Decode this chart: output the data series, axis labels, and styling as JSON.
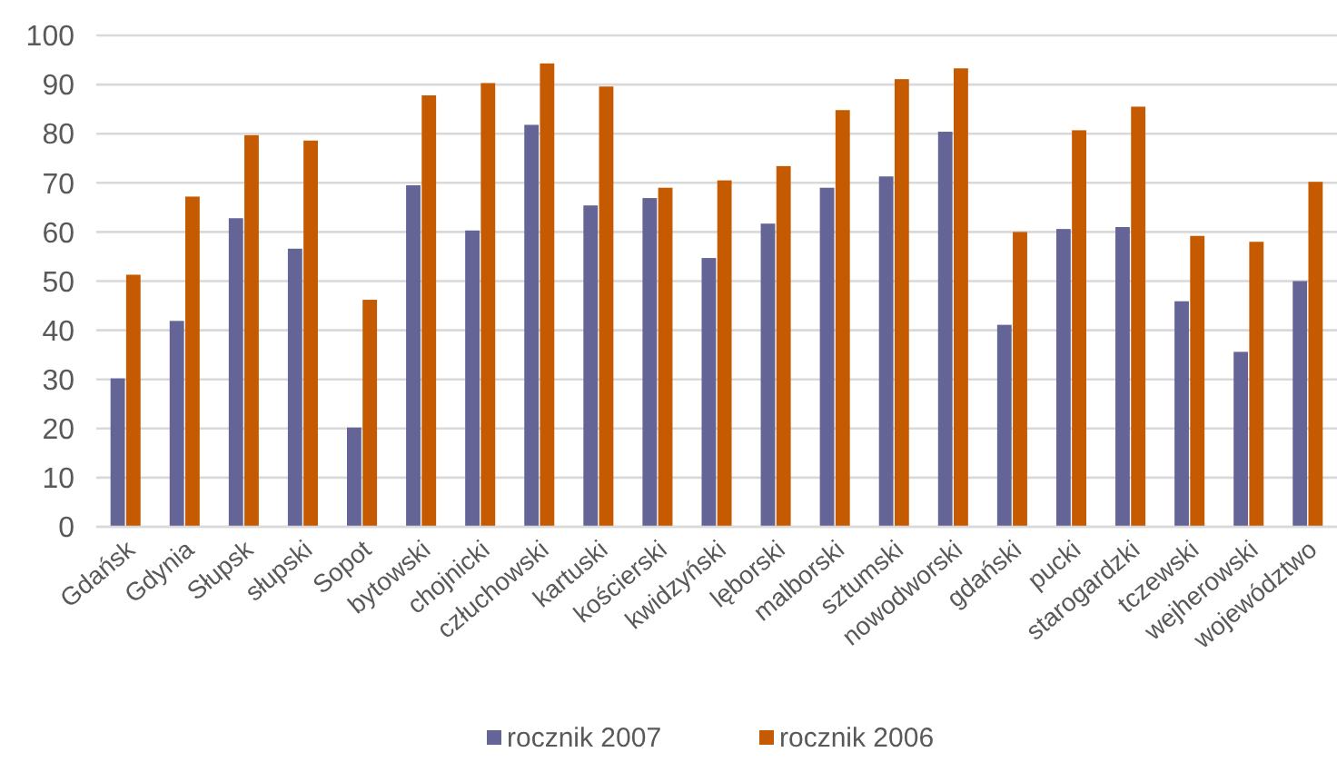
{
  "chart_data": {
    "type": "bar",
    "categories": [
      "Gdańsk",
      "Gdynia",
      "Słupsk",
      "słupski",
      "Sopot",
      "bytowski",
      "chojnicki",
      "człuchowski",
      "kartuski",
      "kościerski",
      "kwidzyński",
      "lęborski",
      "malborski",
      "sztumski",
      "nowodworski",
      "gdański",
      "pucki",
      "starogardzki",
      "tczewski",
      "wejherowski",
      "województwo"
    ],
    "series": [
      {
        "name": "rocznik 2007",
        "color": "#646496",
        "values": [
          30.2,
          41.9,
          62.8,
          56.6,
          20.2,
          69.5,
          60.3,
          81.8,
          65.4,
          66.9,
          54.7,
          61.7,
          69.0,
          71.3,
          80.4,
          41.1,
          60.6,
          61.0,
          45.9,
          35.6,
          50.0
        ]
      },
      {
        "name": "rocznik 2006",
        "color": "#c55a00",
        "values": [
          51.3,
          67.2,
          79.7,
          78.6,
          46.2,
          87.8,
          90.3,
          94.3,
          89.6,
          69.0,
          70.5,
          73.4,
          84.8,
          91.1,
          93.3,
          60.0,
          80.7,
          85.5,
          59.2,
          58.0,
          70.2
        ]
      }
    ],
    "ylim": [
      0,
      100
    ],
    "yticks": [
      0,
      10,
      20,
      30,
      40,
      50,
      60,
      70,
      80,
      90,
      100
    ],
    "grid": "y",
    "legend": "bottom"
  }
}
